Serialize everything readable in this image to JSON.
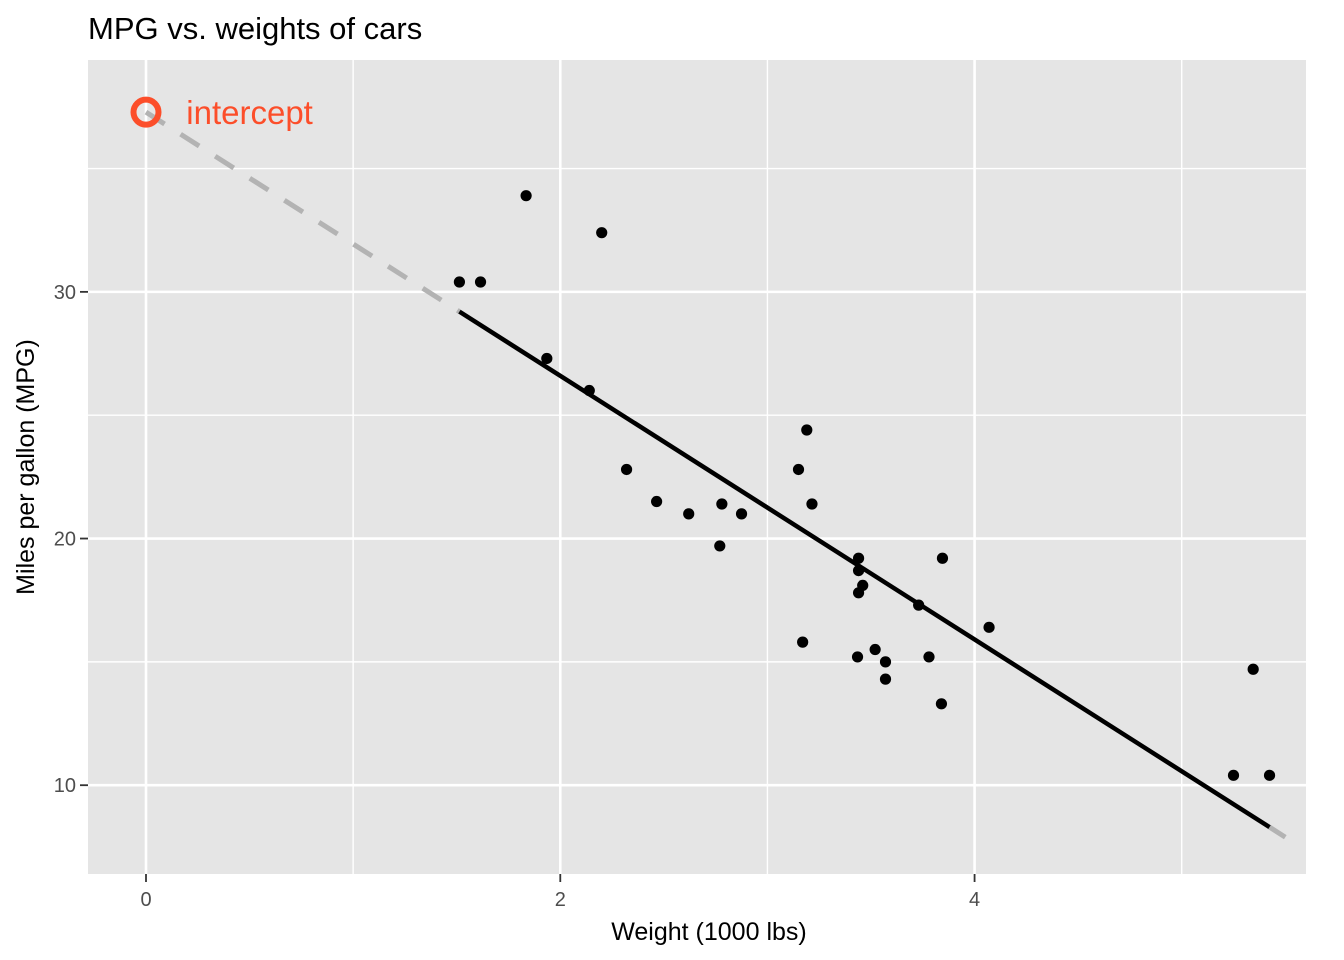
{
  "chart_data": {
    "type": "scatter",
    "title": "MPG vs. weights of cars",
    "xlabel": "Weight (1000 lbs)",
    "ylabel": "Miles per gallon (MPG)",
    "xlim": [
      -0.28,
      5.6
    ],
    "ylim": [
      6.4,
      39.4
    ],
    "x_ticks": [
      0,
      2,
      4
    ],
    "x_tick_labels": [
      "0",
      "2",
      "4"
    ],
    "x_minor_ticks": [
      1,
      3,
      5
    ],
    "y_ticks": [
      10,
      20,
      30
    ],
    "y_tick_labels": [
      "10",
      "20",
      "30"
    ],
    "y_minor_ticks": [
      15,
      25,
      35
    ],
    "grid": true,
    "background_color": "#e5e5e5",
    "grid_color": "#ffffff",
    "points": {
      "color": "#000000",
      "x": [
        2.62,
        2.875,
        2.32,
        3.215,
        3.44,
        3.46,
        3.57,
        3.19,
        3.15,
        3.44,
        3.44,
        4.07,
        3.73,
        3.78,
        5.25,
        5.424,
        5.345,
        2.2,
        1.615,
        1.835,
        2.465,
        3.52,
        3.435,
        3.84,
        3.845,
        1.935,
        2.14,
        1.513,
        3.17,
        2.77,
        3.57,
        2.78
      ],
      "y": [
        21.0,
        21.0,
        22.8,
        21.4,
        18.7,
        18.1,
        14.3,
        24.4,
        22.8,
        19.2,
        17.8,
        16.4,
        17.3,
        15.2,
        10.4,
        10.4,
        14.7,
        32.4,
        30.4,
        33.9,
        21.5,
        15.5,
        15.2,
        13.3,
        19.2,
        27.3,
        26.0,
        30.4,
        15.8,
        19.7,
        15.0,
        21.4
      ]
    },
    "fit_line": {
      "intercept": 37.285,
      "slope": -5.344,
      "solid_range": [
        1.513,
        5.424
      ],
      "dashed_ranges": [
        [
          0,
          1.513
        ],
        [
          5.424,
          5.5
        ]
      ],
      "solid_color": "#000000",
      "dashed_color": "#b3b3b3"
    },
    "intercept_marker": {
      "x": 0,
      "y": 37.285,
      "color": "#fc4e2a"
    },
    "annotation": {
      "text": "intercept",
      "x": 0.5,
      "y": 37.285,
      "color": "#fc4e2a"
    }
  }
}
